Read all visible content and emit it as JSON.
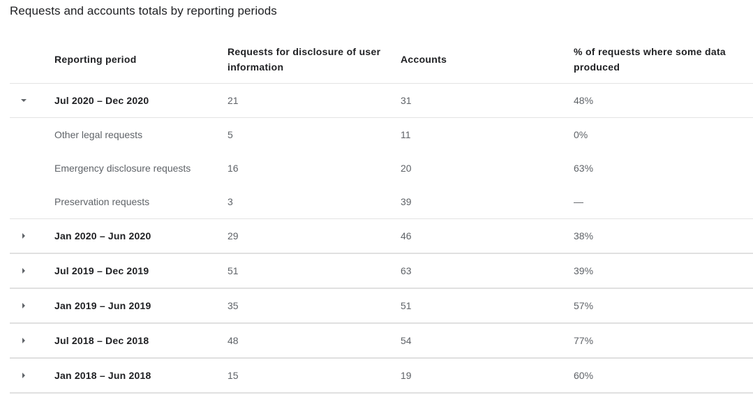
{
  "title": "Requests and accounts totals by reporting periods",
  "columns": {
    "period": "Reporting period",
    "requests": "Requests for disclosure of user information",
    "accounts": "Accounts",
    "percent": "% of requests where some data produced"
  },
  "expanded": {
    "period": "Jul 2020 – Dec 2020",
    "requests": "21",
    "accounts": "31",
    "percent": "48%",
    "subrows": [
      {
        "label": "Other legal requests",
        "requests": "5",
        "accounts": "11",
        "percent": "0%"
      },
      {
        "label": "Emergency disclosure requests",
        "requests": "16",
        "accounts": "20",
        "percent": "63%"
      },
      {
        "label": "Preservation requests",
        "requests": "3",
        "accounts": "39",
        "percent": "—"
      }
    ]
  },
  "collapsed": [
    {
      "period": "Jan 2020 – Jun 2020",
      "requests": "29",
      "accounts": "46",
      "percent": "38%"
    },
    {
      "period": "Jul 2019 – Dec 2019",
      "requests": "51",
      "accounts": "63",
      "percent": "39%"
    },
    {
      "period": "Jan 2019 – Jun 2019",
      "requests": "35",
      "accounts": "51",
      "percent": "57%"
    },
    {
      "period": "Jul 2018 – Dec 2018",
      "requests": "48",
      "accounts": "54",
      "percent": "77%"
    },
    {
      "period": "Jan 2018 – Jun 2018",
      "requests": "15",
      "accounts": "19",
      "percent": "60%"
    }
  ],
  "icons": {
    "expanded": "triangle-down-icon",
    "collapsed": "triangle-right-icon"
  }
}
